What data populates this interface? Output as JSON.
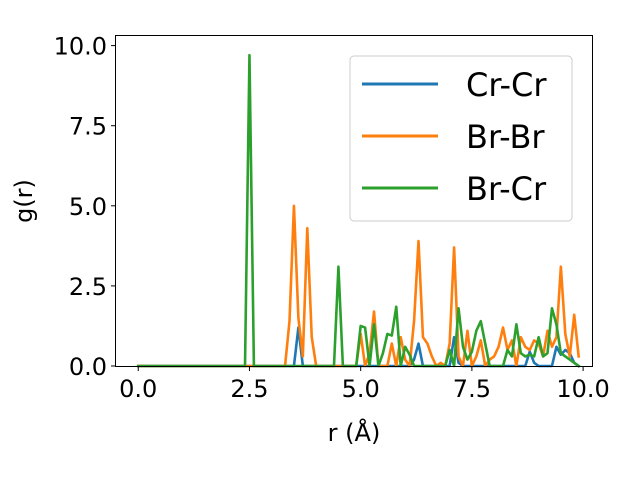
{
  "chart_data": {
    "type": "line",
    "title": "",
    "xlabel": "r (Å)",
    "ylabel": "g(r)",
    "xlim": [
      -0.5,
      10.2
    ],
    "ylim": [
      0,
      10.3
    ],
    "xticks": [
      "0.0",
      "2.5",
      "5.0",
      "7.5",
      "10.0"
    ],
    "yticks": [
      "0.0",
      "2.5",
      "5.0",
      "7.5",
      "10.0"
    ],
    "xtick_values": [
      0,
      2.5,
      5.0,
      7.5,
      10.0
    ],
    "ytick_values": [
      0,
      2.5,
      5.0,
      7.5,
      10.0
    ],
    "grid": false,
    "legend_position": "upper right",
    "series": [
      {
        "name": "Cr-Cr",
        "color": "#1f77b4",
        "x": [
          0,
          3.4,
          3.5,
          3.6,
          3.7,
          3.8,
          6.1,
          6.2,
          6.3,
          6.4,
          7.0,
          7.1,
          7.2,
          7.3,
          8.7,
          8.8,
          8.9,
          9.0,
          9.3,
          9.4,
          9.5,
          9.6,
          9.7,
          9.8,
          9.9
        ],
        "y": [
          0,
          0,
          0,
          1.2,
          0,
          0,
          0,
          0.2,
          0.7,
          0,
          0,
          0.9,
          0.1,
          0,
          0,
          0.45,
          0.1,
          0,
          0,
          0.6,
          0.35,
          0.5,
          0.4,
          0.1,
          0
        ]
      },
      {
        "name": "Br-Br",
        "color": "#ff7f0e",
        "x": [
          0,
          3.3,
          3.4,
          3.5,
          3.6,
          3.7,
          3.8,
          3.9,
          4.0,
          4.1,
          4.9,
          5.0,
          5.1,
          5.2,
          5.3,
          5.4,
          5.5,
          5.6,
          5.7,
          5.8,
          5.9,
          6.0,
          6.1,
          6.2,
          6.3,
          6.4,
          6.5,
          6.6,
          6.7,
          6.8,
          6.9,
          7.0,
          7.1,
          7.2,
          7.3,
          7.4,
          7.5,
          7.6,
          7.7,
          7.8,
          7.9,
          8.0,
          8.1,
          8.2,
          8.3,
          8.4,
          8.5,
          8.6,
          8.7,
          8.8,
          8.9,
          9.0,
          9.1,
          9.2,
          9.3,
          9.4,
          9.5,
          9.6,
          9.7,
          9.8,
          9.9
        ],
        "y": [
          0,
          0,
          1.4,
          5.0,
          1.5,
          0.3,
          4.3,
          0.9,
          0,
          0,
          0,
          1.0,
          0,
          0.4,
          1.7,
          0,
          0,
          0,
          0.7,
          0,
          0.9,
          0.2,
          0,
          1.4,
          3.9,
          0.9,
          0.7,
          0.3,
          0,
          0.1,
          0,
          0.7,
          3.7,
          0.3,
          0,
          1.1,
          0,
          0.3,
          0.8,
          0,
          0.2,
          0.3,
          0.6,
          1.2,
          0.5,
          0.8,
          0,
          0.9,
          0.6,
          0.5,
          0.8,
          0.7,
          0.3,
          1.1,
          0.6,
          0.9,
          3.1,
          1.0,
          0.3,
          1.6,
          0.3
        ]
      },
      {
        "name": "Br-Cr",
        "color": "#2ca02c",
        "x": [
          0,
          2.4,
          2.5,
          2.6,
          4.3,
          4.4,
          4.5,
          4.6,
          4.9,
          5.0,
          5.1,
          5.2,
          5.3,
          5.4,
          5.5,
          5.6,
          5.7,
          5.8,
          5.9,
          6.0,
          6.1,
          6.2,
          6.3,
          6.4,
          6.5,
          6.6,
          6.7,
          6.8,
          6.9,
          7.0,
          7.1,
          7.2,
          7.3,
          7.4,
          7.5,
          7.6,
          7.7,
          7.8,
          7.9,
          8.0,
          8.1,
          8.2,
          8.3,
          8.4,
          8.5,
          8.6,
          8.7,
          8.8,
          8.9,
          9.0,
          9.1,
          9.2,
          9.3,
          9.4,
          9.5,
          9.6,
          9.7,
          9.8,
          9.9
        ],
        "y": [
          0,
          0,
          9.7,
          0,
          0,
          0,
          3.1,
          0,
          0,
          1.25,
          1.2,
          0,
          1.3,
          0,
          0.4,
          1.0,
          0.95,
          1.85,
          0,
          0.6,
          0.35,
          0,
          0,
          0,
          0,
          0,
          0,
          0,
          0,
          0.5,
          0,
          1.8,
          0.6,
          0.2,
          0.45,
          1.1,
          1.4,
          0.7,
          0,
          0,
          0,
          0,
          0.5,
          0.3,
          1.3,
          0.4,
          0.3,
          0.35,
          0.3,
          0.9,
          0.3,
          0.4,
          1.8,
          1.3,
          0.4,
          0.3,
          0.2,
          0.1,
          0
        ]
      }
    ]
  }
}
